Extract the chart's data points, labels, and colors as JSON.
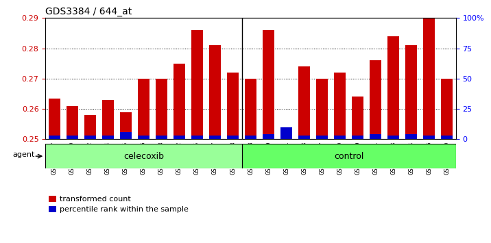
{
  "title": "GDS3384 / 644_at",
  "samples": [
    "GSM283127",
    "GSM283129",
    "GSM283132",
    "GSM283134",
    "GSM283135",
    "GSM283136",
    "GSM283138",
    "GSM283142",
    "GSM283145",
    "GSM283147",
    "GSM283148",
    "GSM283128",
    "GSM283130",
    "GSM283131",
    "GSM283133",
    "GSM283137",
    "GSM283139",
    "GSM283140",
    "GSM283141",
    "GSM283143",
    "GSM283144",
    "GSM283146",
    "GSM283149"
  ],
  "red_values": [
    0.2635,
    0.261,
    0.258,
    0.263,
    0.259,
    0.27,
    0.27,
    0.275,
    0.286,
    0.281,
    0.272,
    0.27,
    0.286,
    0.25,
    0.274,
    0.27,
    0.272,
    0.264,
    0.276,
    0.284,
    0.281,
    0.291,
    0.27
  ],
  "blue_percentiles": [
    3,
    3,
    3,
    3,
    6,
    3,
    3,
    3,
    3,
    3,
    3,
    3,
    4,
    10,
    3,
    3,
    3,
    3,
    4,
    3,
    4,
    3,
    3
  ],
  "celecoxib_count": 11,
  "control_count": 12,
  "ymin": 0.25,
  "ymax": 0.29,
  "yticks": [
    0.25,
    0.26,
    0.27,
    0.28,
    0.29
  ],
  "right_yticks": [
    0,
    25,
    50,
    75,
    100
  ],
  "bar_color_red": "#cc0000",
  "bar_color_blue": "#0000cc",
  "celecoxib_color": "#99ff99",
  "control_color": "#66ff66",
  "agent_label": "agent",
  "celecoxib_label": "celecoxib",
  "control_label": "control",
  "legend_red": "transformed count",
  "legend_blue": "percentile rank within the sample"
}
